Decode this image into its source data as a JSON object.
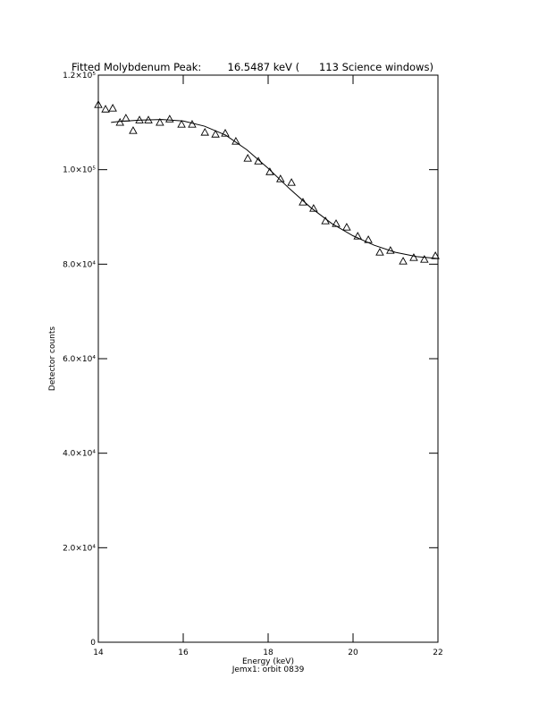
{
  "chart_data": {
    "type": "scatter",
    "title": "Fitted Molybdenum Peak:        16.5487 keV (      113 Science windows)",
    "x_label": "Energy (keV)",
    "y_label": "Detector counts",
    "footnote": "Jemx1: orbit 0839",
    "xlim": [
      14,
      22
    ],
    "xticks": [
      14,
      16,
      18,
      20,
      22
    ],
    "ylim": [
      0,
      120000
    ],
    "yticks": [
      0,
      {
        "value": 20000,
        "label": "2.0×10⁴"
      },
      {
        "value": 40000,
        "label": "4.0×10⁴"
      },
      {
        "value": 60000,
        "label": "6.0×10⁴"
      },
      {
        "value": 80000,
        "label": "8.0×10⁴"
      },
      {
        "value": 100000,
        "label": "1.0×10⁵"
      },
      {
        "value": 120000,
        "label": "1.2×10⁵"
      }
    ],
    "grid": false,
    "series": [
      {
        "type": "scatter",
        "marker": "triangle",
        "color": "#000000",
        "x": [
          14.0,
          14.17,
          14.34,
          14.51,
          14.65,
          14.82,
          14.97,
          15.18,
          15.45,
          15.68,
          15.96,
          16.21,
          16.51,
          16.76,
          16.99,
          17.24,
          17.52,
          17.77,
          18.04,
          18.29,
          18.55,
          18.82,
          19.07,
          19.35,
          19.6,
          19.85,
          20.11,
          20.36,
          20.63,
          20.88,
          21.18,
          21.43,
          21.68,
          21.94
        ],
        "values": [
          113750,
          112800,
          113000,
          110000,
          110900,
          108260,
          110500,
          110500,
          110000,
          110700,
          109600,
          109600,
          107900,
          107500,
          107700,
          106000,
          102400,
          101800,
          99550,
          98040,
          97280,
          93120,
          91800,
          89150,
          88580,
          87820,
          85930,
          85170,
          82520,
          82900,
          80630,
          81390,
          81010,
          81770
        ]
      },
      {
        "type": "line",
        "color": "#000000",
        "x": [
          14.3,
          14.5,
          15,
          15.5,
          16,
          16.5,
          17,
          17.5,
          18,
          18.5,
          19,
          19.5,
          20,
          20.5,
          21,
          21.5,
          22
        ],
        "values": [
          110000,
          110200,
          110500,
          110600,
          110300,
          109200,
          107300,
          104200,
          100300,
          96000,
          92000,
          88600,
          86000,
          84000,
          82500,
          81600,
          81200
        ]
      }
    ]
  }
}
